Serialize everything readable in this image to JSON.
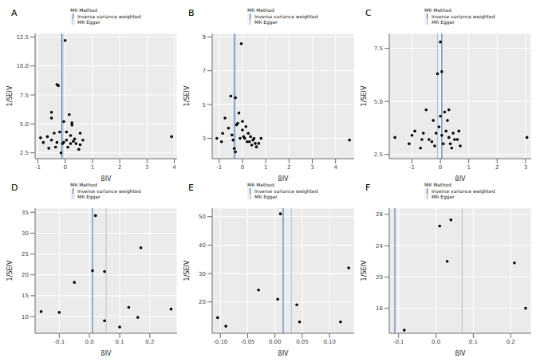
{
  "chart_data": [
    {
      "type": "scatter",
      "title": "A",
      "x_label": "βIV",
      "y_label": "1/SEIV",
      "legend_title": "MR Method",
      "grid": true,
      "color": "#000000",
      "marker": "circle",
      "xlim": [
        -1.1,
        4.1
      ],
      "ylim": [
        2,
        12.8
      ],
      "xticks": [
        -1,
        0,
        1,
        2,
        3,
        4
      ],
      "yticks": [
        {
          "value": 2.5,
          "label": "2.5"
        },
        {
          "value": 5,
          "label": "5.0"
        },
        {
          "value": 7.5,
          "label": "7.5"
        },
        {
          "value": 10,
          "label": "10.0"
        },
        {
          "value": 12.5,
          "label": "12.5"
        }
      ],
      "x": [
        -0.9,
        -0.8,
        -0.65,
        -0.6,
        -0.5,
        -0.5,
        -0.5,
        -0.4,
        -0.35,
        -0.3,
        -0.25,
        -0.3,
        -0.2,
        -0.15,
        -0.1,
        -0.05,
        -0.05,
        0.0,
        0.05,
        0.05,
        0.1,
        0.15,
        0.2,
        0.2,
        0.25,
        0.25,
        0.3,
        0.35,
        0.4,
        0.5,
        0.55,
        0.55,
        0.65,
        3.9
      ],
      "values": [
        3.8,
        3.4,
        3.9,
        2.9,
        3.6,
        5.5,
        6.0,
        4.2,
        3.0,
        8.4,
        8.3,
        3.4,
        4.3,
        2.5,
        3.3,
        5.2,
        3.4,
        12.2,
        4.3,
        3.6,
        3.0,
        5.8,
        3.3,
        4.0,
        5.1,
        4.9,
        3.5,
        3.7,
        3.3,
        2.8,
        4.2,
        3.2,
        3.6,
        3.9
      ],
      "series": [
        {
          "name": "Inverse variance weighted",
          "color": "#3a6fb0",
          "type": "vline",
          "x": -0.12
        },
        {
          "name": "MR Egger",
          "color": "#a9c4d8",
          "type": "vline",
          "x": -0.08
        }
      ]
    },
    {
      "type": "scatter",
      "title": "B",
      "x_label": "βIV",
      "y_label": "1/SEIV",
      "legend_title": "MR Method",
      "grid": true,
      "color": "#000000",
      "marker": "circle",
      "xlim": [
        -1.3,
        4.8
      ],
      "ylim": [
        1.8,
        9.2
      ],
      "xticks": [
        -1,
        0,
        1,
        2,
        3,
        4
      ],
      "yticks": [
        3,
        5,
        7,
        9
      ],
      "x": [
        -1.1,
        -0.9,
        -0.85,
        -0.75,
        -0.6,
        -0.5,
        -0.45,
        -0.4,
        -0.35,
        -0.3,
        -0.3,
        -0.25,
        -0.2,
        -0.15,
        -0.1,
        -0.05,
        0.0,
        0.0,
        0.05,
        0.1,
        0.15,
        0.2,
        0.25,
        0.3,
        0.35,
        0.4,
        0.45,
        0.5,
        0.55,
        0.6,
        0.7,
        0.8,
        4.6
      ],
      "values": [
        3.0,
        2.8,
        3.3,
        4.2,
        3.6,
        5.5,
        3.2,
        2.9,
        2.4,
        2.2,
        5.4,
        3.8,
        3.9,
        4.5,
        3.0,
        8.6,
        3.5,
        4.0,
        3.1,
        3.0,
        3.7,
        2.8,
        3.3,
        2.8,
        3.1,
        2.6,
        2.9,
        3.0,
        2.7,
        2.5,
        2.7,
        3.0,
        2.9
      ],
      "series": [
        {
          "name": "Inverse variance weighted",
          "color": "#3a6fb0",
          "type": "vline",
          "x": -0.35
        },
        {
          "name": "MR Egger",
          "color": "#a9c4d8",
          "type": "vline",
          "x": -0.3
        }
      ]
    },
    {
      "type": "scatter",
      "title": "C",
      "x_label": "βIV",
      "y_label": "1/SEIV",
      "legend_title": "MR Method",
      "grid": true,
      "color": "#000000",
      "marker": "circle",
      "xlim": [
        -1.8,
        3.2
      ],
      "ylim": [
        2.3,
        8.2
      ],
      "xticks": [
        -1,
        0,
        1,
        2,
        3
      ],
      "yticks": [
        {
          "value": 2.5,
          "label": "2.5"
        },
        {
          "value": 5,
          "label": "5.0"
        },
        {
          "value": 7.5,
          "label": "7.5"
        }
      ],
      "x": [
        -1.6,
        -1.1,
        -1.0,
        -0.9,
        -0.7,
        -0.65,
        -0.6,
        -0.5,
        -0.4,
        -0.3,
        -0.25,
        -0.2,
        -0.15,
        -0.1,
        -0.05,
        0.0,
        0.0,
        0.05,
        0.05,
        0.1,
        0.15,
        0.2,
        0.25,
        0.3,
        0.3,
        0.35,
        0.4,
        0.45,
        0.5,
        0.6,
        0.65,
        0.7,
        3.05
      ],
      "values": [
        3.3,
        3.0,
        3.4,
        3.6,
        2.8,
        3.2,
        3.5,
        4.6,
        3.2,
        3.1,
        4.1,
        2.9,
        3.5,
        6.3,
        3.8,
        7.8,
        4.3,
        6.4,
        3.4,
        3.0,
        4.5,
        3.6,
        4.1,
        4.6,
        3.3,
        3.0,
        2.8,
        3.5,
        3.2,
        3.2,
        3.6,
        2.9,
        3.3
      ],
      "series": [
        {
          "name": "Inverse variance weighted",
          "color": "#3a6fb0",
          "type": "vline",
          "x": 0.05
        },
        {
          "name": "MR Egger",
          "color": "#a9c4d8",
          "type": "vline",
          "x": -0.1
        }
      ]
    },
    {
      "type": "scatter",
      "title": "D",
      "x_label": "βIV",
      "y_label": "1/SEIV",
      "legend_title": "MR Method",
      "grid": true,
      "color": "#000000",
      "marker": "circle",
      "xlim": [
        -0.18,
        0.29
      ],
      "ylim": [
        6,
        36
      ],
      "xticks": [
        -0.1,
        {
          "value": 0,
          "label": "0.0"
        },
        0.1,
        0.2
      ],
      "yticks": [
        10,
        15,
        20,
        25,
        30,
        35
      ],
      "x": [
        -0.16,
        -0.1,
        -0.05,
        0.01,
        0.02,
        0.05,
        0.05,
        0.1,
        0.13,
        0.16,
        0.17,
        0.27
      ],
      "values": [
        11.2,
        11.0,
        18.2,
        21.0,
        34.2,
        20.8,
        9.0,
        7.5,
        12.2,
        9.8,
        26.5,
        11.8
      ],
      "series": [
        {
          "name": "Inverse variance weighted",
          "color": "#3a6fb0",
          "type": "vline",
          "x": 0.01
        },
        {
          "name": "MR Egger",
          "color": "#a9c4d8",
          "type": "vline",
          "x": 0.055
        }
      ]
    },
    {
      "type": "scatter",
      "title": "E",
      "x_label": "βIV",
      "y_label": "1/SEIV",
      "legend_title": "MR Method",
      "grid": true,
      "color": "#000000",
      "marker": "circle",
      "xlim": [
        -0.115,
        0.145
      ],
      "ylim": [
        9,
        53
      ],
      "xticks": [
        {
          "value": -0.1,
          "label": "-0.10"
        },
        {
          "value": -0.05,
          "label": "-0.05"
        },
        {
          "value": 0,
          "label": "0.00"
        },
        {
          "value": 0.05,
          "label": "0.05"
        },
        {
          "value": 0.1,
          "label": "0.10"
        }
      ],
      "yticks": [
        20,
        30,
        40,
        50
      ],
      "x": [
        -0.105,
        -0.09,
        -0.03,
        0.005,
        0.01,
        0.04,
        0.045,
        0.12,
        0.135
      ],
      "values": [
        14.5,
        11.5,
        24.2,
        21.0,
        51.0,
        19.0,
        13.0,
        13.0,
        32.0
      ],
      "series": [
        {
          "name": "Inverse variance weighted",
          "color": "#3a6fb0",
          "type": "vline",
          "x": 0.015
        },
        {
          "name": "MR Egger",
          "color": "#a9c4d8",
          "type": "vline",
          "x": 0.03
        }
      ]
    },
    {
      "type": "scatter",
      "title": "F",
      "x_label": "βIV",
      "y_label": "1/SEIV",
      "legend_title": "MR Method",
      "grid": true,
      "color": "#000000",
      "marker": "circle",
      "xlim": [
        -0.125,
        0.255
      ],
      "ylim": [
        12.8,
        28.8
      ],
      "xticks": [
        -0.1,
        {
          "value": 0,
          "label": "0.0"
        },
        0.1,
        0.2
      ],
      "yticks": [
        16,
        20,
        24,
        28
      ],
      "x": [
        -0.085,
        0.01,
        0.03,
        0.04,
        0.21,
        0.24
      ],
      "values": [
        13.2,
        26.5,
        22.0,
        27.3,
        21.8,
        16.0
      ],
      "series": [
        {
          "name": "Inverse variance weighted",
          "color": "#3a6fb0",
          "type": "vline",
          "x": -0.11
        },
        {
          "name": "MR Egger",
          "color": "#a9c4d8",
          "type": "vline",
          "x": 0.07
        }
      ]
    }
  ]
}
